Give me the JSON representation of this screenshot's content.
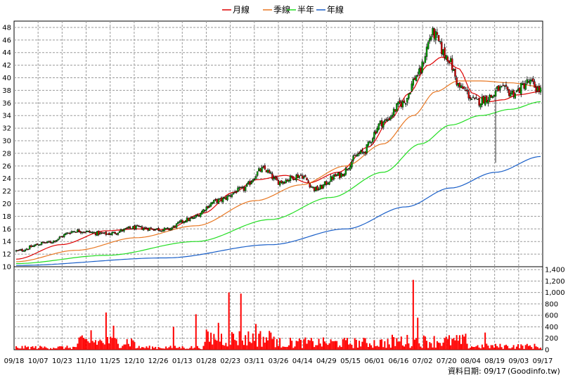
{
  "chart_data": [
    {
      "type": "candlestick",
      "legend": [
        {
          "label": "月線",
          "color": "#dd0000"
        },
        {
          "label": "季線",
          "color": "#e87722"
        },
        {
          "label": "半年",
          "color": "#22dd22"
        },
        {
          "label": "年線",
          "color": "#1a5fc8"
        }
      ],
      "y_ticks": [
        10,
        12,
        14,
        16,
        18,
        20,
        22,
        24,
        26,
        28,
        30,
        32,
        34,
        36,
        38,
        40,
        42,
        44,
        46,
        48
      ],
      "ylim": [
        10,
        49
      ],
      "x_ticks": [
        "09/18",
        "10/07",
        "10/23",
        "11/10",
        "11/25",
        "12/10",
        "12/26",
        "01/13",
        "01/28",
        "02/23",
        "03/11",
        "03/26",
        "04/14",
        "04/29",
        "05/15",
        "06/01",
        "06/16",
        "07/02",
        "07/20",
        "08/04",
        "08/19",
        "09/03",
        "09/17"
      ],
      "up_color": "#00aa00",
      "down_color": "#dd0000",
      "close_keypoints": [
        [
          0,
          12.5
        ],
        [
          20,
          13.8
        ],
        [
          40,
          15.7
        ],
        [
          60,
          15.2
        ],
        [
          80,
          16.2
        ],
        [
          100,
          15.9
        ],
        [
          115,
          17.5
        ],
        [
          135,
          20.5
        ],
        [
          150,
          22.2
        ],
        [
          165,
          25.5
        ],
        [
          175,
          23.5
        ],
        [
          190,
          24.5
        ],
        [
          200,
          22.3
        ],
        [
          215,
          24.5
        ],
        [
          230,
          28
        ],
        [
          245,
          33
        ],
        [
          258,
          36
        ],
        [
          268,
          40.5
        ],
        [
          278,
          47
        ],
        [
          287,
          43.5
        ],
        [
          297,
          38.3
        ],
        [
          307,
          36.2
        ],
        [
          317,
          37
        ],
        [
          322,
          38.2
        ],
        [
          332,
          37.6
        ],
        [
          342,
          39.3
        ],
        [
          350,
          38
        ]
      ],
      "ma_keypoints": {
        "month": [
          [
            0,
            11.2
          ],
          [
            30,
            13.5
          ],
          [
            60,
            15.7
          ],
          [
            80,
            16.0
          ],
          [
            100,
            15.9
          ],
          [
            125,
            18.5
          ],
          [
            145,
            21.8
          ],
          [
            160,
            23.8
          ],
          [
            180,
            24.5
          ],
          [
            195,
            23.3
          ],
          [
            215,
            25.0
          ],
          [
            235,
            29.0
          ],
          [
            250,
            33.5
          ],
          [
            262,
            37.5
          ],
          [
            275,
            42.0
          ],
          [
            284,
            43.3
          ],
          [
            295,
            41.5
          ],
          [
            305,
            37.5
          ],
          [
            315,
            36.2
          ],
          [
            325,
            36.5
          ],
          [
            335,
            37.3
          ],
          [
            350,
            37.8
          ]
        ],
        "quarter": [
          [
            0,
            10.8
          ],
          [
            40,
            12.6
          ],
          [
            80,
            14.6
          ],
          [
            120,
            16.5
          ],
          [
            160,
            20.5
          ],
          [
            190,
            23.0
          ],
          [
            220,
            26.0
          ],
          [
            245,
            29.5
          ],
          [
            265,
            34.0
          ],
          [
            280,
            37.8
          ],
          [
            295,
            39.5
          ],
          [
            310,
            39.5
          ],
          [
            330,
            39.2
          ],
          [
            350,
            38.6
          ]
        ],
        "half": [
          [
            0,
            10.5
          ],
          [
            60,
            11.8
          ],
          [
            120,
            14.0
          ],
          [
            170,
            17.5
          ],
          [
            210,
            21.0
          ],
          [
            245,
            25.0
          ],
          [
            270,
            29.5
          ],
          [
            290,
            32.5
          ],
          [
            310,
            34.0
          ],
          [
            330,
            35.0
          ],
          [
            350,
            36.2
          ]
        ],
        "year": [
          [
            0,
            10.2
          ],
          [
            100,
            11.4
          ],
          [
            170,
            13.5
          ],
          [
            220,
            16.0
          ],
          [
            260,
            19.5
          ],
          [
            290,
            22.5
          ],
          [
            320,
            25.0
          ],
          [
            350,
            27.5
          ]
        ]
      },
      "ma_spike_min_low": 26.5
    },
    {
      "type": "bar",
      "y_ticks": [
        0,
        200,
        400,
        600,
        800,
        1000,
        1200,
        1400
      ],
      "ylim": [
        0,
        1450
      ],
      "bar_color": "#ff0000",
      "volume_spikes": [
        [
          50,
          340
        ],
        [
          60,
          650
        ],
        [
          65,
          420
        ],
        [
          105,
          400
        ],
        [
          120,
          620
        ],
        [
          135,
          470
        ],
        [
          142,
          1000
        ],
        [
          150,
          980
        ],
        [
          160,
          450
        ],
        [
          170,
          300
        ],
        [
          265,
          1220
        ],
        [
          268,
          560
        ],
        [
          300,
          280
        ],
        [
          313,
          300
        ]
      ]
    }
  ],
  "source": {
    "label": "資料日期: 09/17",
    "site": "(Goodinfo.tw)"
  }
}
